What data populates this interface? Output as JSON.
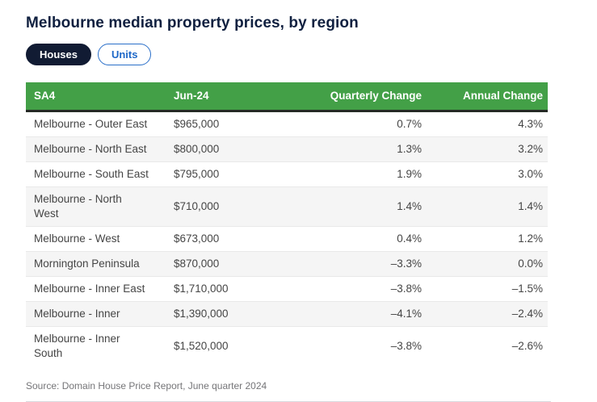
{
  "title": "Melbourne median property prices, by region",
  "toggle": {
    "houses": "Houses",
    "units": "Units",
    "selected": "Houses"
  },
  "table": {
    "columns": [
      "SA4",
      "Jun-24",
      "Quarterly Change",
      "Annual Change"
    ],
    "rows": [
      [
        "Melbourne - Outer East",
        "$965,000",
        "0.7%",
        "4.3%"
      ],
      [
        "Melbourne - North East",
        "$800,000",
        "1.3%",
        "3.2%"
      ],
      [
        "Melbourne - South East",
        "$795,000",
        "1.9%",
        "3.0%"
      ],
      [
        "Melbourne - North\nWest",
        "$710,000",
        "1.4%",
        "1.4%"
      ],
      [
        "Melbourne - West",
        "$673,000",
        "0.4%",
        "1.2%"
      ],
      [
        "Mornington Peninsula",
        "$870,000",
        "–3.3%",
        "0.0%"
      ],
      [
        "Melbourne - Inner East",
        "$1,710,000",
        "–3.8%",
        "–1.5%"
      ],
      [
        "Melbourne - Inner",
        "$1,390,000",
        "–4.1%",
        "–2.4%"
      ],
      [
        "Melbourne - Inner\nSouth",
        "$1,520,000",
        "–3.8%",
        "–2.6%"
      ]
    ]
  },
  "footer": {
    "source": "Source: Domain House Price Report, June quarter 2024"
  },
  "colors": {
    "header_green": "#43a047",
    "header_border": "#252a25",
    "active_pill_navy": "#111b33",
    "inactive_pill_blue": "#1e68c8",
    "title_navy": "#102040",
    "alt_row_gray": "#f5f5f5"
  },
  "chart_data": {
    "type": "table",
    "title": "Melbourne median property prices, by region",
    "view": "Houses",
    "columns": [
      "SA4",
      "Jun-24",
      "Quarterly Change",
      "Annual Change"
    ],
    "categories": [
      "Melbourne - Outer East",
      "Melbourne - North East",
      "Melbourne - South East",
      "Melbourne - North West",
      "Melbourne - West",
      "Mornington Peninsula",
      "Melbourne - Inner East",
      "Melbourne - Inner",
      "Melbourne - Inner South"
    ],
    "series": [
      {
        "name": "Jun-24 median price ($)",
        "values": [
          965000,
          800000,
          795000,
          710000,
          673000,
          870000,
          1710000,
          1390000,
          1520000
        ]
      },
      {
        "name": "Quarterly Change (%)",
        "values": [
          0.7,
          1.3,
          1.9,
          1.4,
          0.4,
          -3.3,
          -3.8,
          -4.1,
          -3.8
        ]
      },
      {
        "name": "Annual Change (%)",
        "values": [
          4.3,
          3.2,
          3.0,
          1.4,
          1.2,
          0.0,
          -1.5,
          -2.4,
          -2.6
        ]
      }
    ],
    "source": "Source: Domain House Price Report, June quarter 2024"
  }
}
